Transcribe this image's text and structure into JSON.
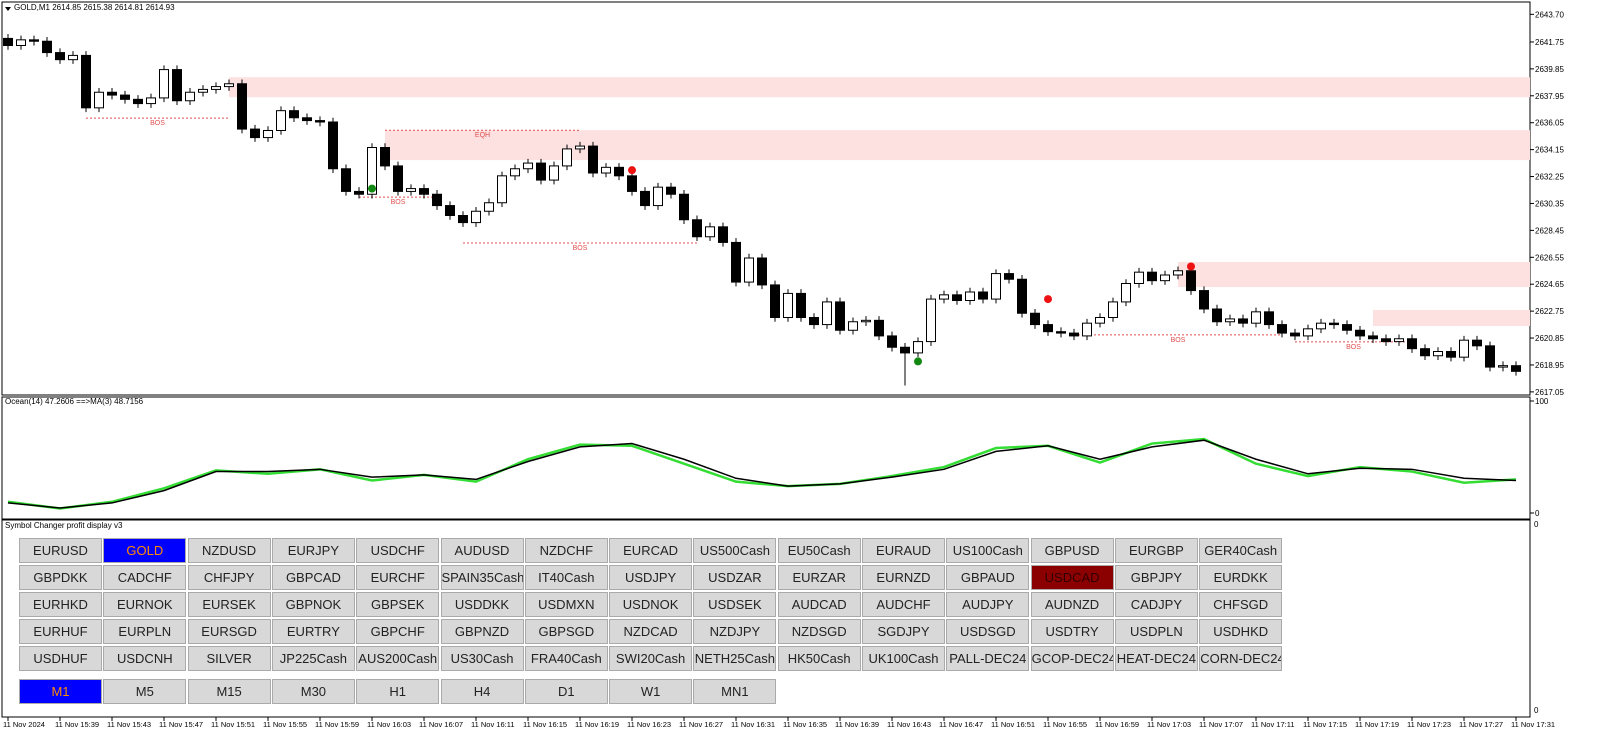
{
  "chart_data": [
    {
      "type": "candlestick",
      "title": "GOLD,M1  2614.85 2615.38 2614.81 2614.93",
      "categories": [
        "11 Nov 2024",
        null,
        null,
        null,
        "11 Nov 15:39",
        null,
        null,
        null,
        "11 Nov 15:43",
        null,
        null,
        null,
        "11 Nov 15:47",
        null,
        null,
        null,
        "11 Nov 15:51",
        null,
        null,
        null,
        "11 Nov 15:55",
        null,
        null,
        null,
        "11 Nov 15:59",
        null,
        null,
        null,
        "11 Nov 16:03",
        null,
        null,
        null,
        "11 Nov 16:07",
        null,
        null,
        null,
        "11 Nov 16:11",
        null,
        null,
        null,
        "11 Nov 16:15",
        null,
        null,
        null,
        "11 Nov 16:19",
        null,
        null,
        null,
        "11 Nov 16:23",
        null,
        null,
        null,
        "11 Nov 16:27",
        null,
        null,
        null,
        "11 Nov 16:31",
        null,
        null,
        null,
        "11 Nov 16:35",
        null,
        null,
        null,
        "11 Nov 16:39",
        null,
        null,
        null,
        "11 Nov 16:43",
        null,
        null,
        null,
        "11 Nov 16:47",
        null,
        null,
        null,
        "11 Nov 16:51",
        null,
        null,
        null,
        "11 Nov 16:55",
        null,
        null,
        null,
        "11 Nov 16:59",
        null,
        null,
        null,
        "11 Nov 17:03",
        null,
        null,
        null,
        "11 Nov 17:07",
        null,
        null,
        null,
        "11 Nov 17:11",
        null,
        null,
        null,
        "11 Nov 17:15",
        null,
        null,
        null,
        "11 Nov 17:19",
        null,
        null,
        null,
        "11 Nov 17:23",
        null,
        null,
        null,
        "11 Nov 17:27",
        null,
        null,
        null,
        "11 Nov 17:31"
      ],
      "open": [
        2642.0,
        2641.5,
        2641.9,
        2641.8,
        2641.0,
        2640.5,
        2640.8,
        2637.1,
        2638.2,
        2638.0,
        2637.7,
        2637.4,
        2637.8,
        2639.8,
        2637.6,
        2638.2,
        2638.4,
        2638.6,
        2638.8,
        2635.6,
        2635.0,
        2635.5,
        2636.9,
        2636.4,
        2636.2,
        2636.1,
        2632.8,
        2631.2,
        2631.0,
        2634.3,
        2633.0,
        2631.2,
        2631.4,
        2631.0,
        2630.2,
        2629.5,
        2629.0,
        2629.8,
        2630.4,
        2632.3,
        2632.8,
        2633.2,
        2632.0,
        2633.0,
        2634.2,
        2634.4,
        2632.5,
        2632.9,
        2632.3,
        2631.2,
        2630.2,
        2631.5,
        2631.0,
        2629.2,
        2628.0,
        2628.7,
        2627.6,
        2624.8,
        2626.5,
        2624.6,
        2622.3,
        2624.0,
        2622.3,
        2621.8,
        2623.4,
        2621.4,
        2622.0,
        2622.1,
        2621.0,
        2620.2,
        2619.8,
        2620.6,
        2623.6,
        2623.9,
        2623.5,
        2624.1,
        2623.6,
        2625.4,
        2625.0,
        2622.6,
        2621.8,
        2621.3,
        2621.2,
        2621.0,
        2621.9,
        2622.3,
        2623.4,
        2624.7,
        2625.5,
        2624.9,
        2625.3,
        2625.6,
        2624.2,
        2622.9,
        2622.0,
        2622.2,
        2621.9,
        2622.7,
        2621.8,
        2621.2,
        2621.0,
        2621.5,
        2621.9,
        2621.8,
        2621.4,
        2621.0,
        2620.8,
        2620.6,
        2620.8,
        2620.1,
        2619.6,
        2619.9,
        2619.5,
        2620.7,
        2620.3,
        2618.8,
        2618.9
      ],
      "high": [
        2642.3,
        2642.2,
        2642.2,
        2642.1,
        2641.3,
        2641.1,
        2641.1,
        2638.5,
        2638.5,
        2638.3,
        2638.0,
        2638.1,
        2640.1,
        2640.1,
        2638.5,
        2638.7,
        2638.9,
        2639.1,
        2639.1,
        2635.9,
        2635.8,
        2637.2,
        2637.2,
        2636.7,
        2636.5,
        2636.4,
        2633.1,
        2631.5,
        2634.6,
        2634.6,
        2633.3,
        2631.7,
        2631.7,
        2631.3,
        2630.5,
        2629.8,
        2630.1,
        2630.7,
        2632.6,
        2633.1,
        2633.5,
        2633.5,
        2633.3,
        2634.5,
        2634.7,
        2634.7,
        2633.2,
        2633.2,
        2632.6,
        2631.5,
        2631.8,
        2631.8,
        2631.3,
        2629.5,
        2629.0,
        2629.0,
        2627.9,
        2626.8,
        2626.8,
        2624.9,
        2624.3,
        2624.3,
        2622.6,
        2623.7,
        2623.7,
        2622.3,
        2622.4,
        2622.4,
        2621.3,
        2620.5,
        2620.9,
        2623.9,
        2624.2,
        2624.2,
        2624.4,
        2624.4,
        2625.7,
        2625.7,
        2625.3,
        2622.9,
        2622.1,
        2621.6,
        2621.5,
        2622.2,
        2622.6,
        2623.7,
        2625.0,
        2625.8,
        2625.8,
        2625.6,
        2625.9,
        2625.9,
        2624.5,
        2623.2,
        2622.5,
        2622.5,
        2623.0,
        2623.0,
        2622.1,
        2621.5,
        2621.8,
        2622.2,
        2622.2,
        2622.1,
        2621.7,
        2621.3,
        2621.1,
        2621.1,
        2621.1,
        2620.4,
        2620.2,
        2620.2,
        2621.0,
        2621.0,
        2620.6,
        2619.2,
        2619.2
      ],
      "low": [
        2641.2,
        2641.2,
        2641.5,
        2640.7,
        2640.2,
        2640.2,
        2636.8,
        2636.8,
        2637.7,
        2637.4,
        2637.1,
        2637.1,
        2637.5,
        2637.3,
        2637.3,
        2637.9,
        2638.1,
        2638.3,
        2635.3,
        2634.7,
        2634.7,
        2635.2,
        2636.1,
        2635.9,
        2635.8,
        2632.5,
        2630.9,
        2630.7,
        2630.7,
        2632.7,
        2630.9,
        2630.9,
        2630.7,
        2629.9,
        2629.2,
        2628.7,
        2628.7,
        2629.5,
        2630.1,
        2632.0,
        2632.5,
        2631.7,
        2631.7,
        2632.7,
        2633.9,
        2632.2,
        2632.2,
        2632.0,
        2630.9,
        2629.9,
        2629.9,
        2630.7,
        2628.9,
        2627.7,
        2627.7,
        2627.3,
        2624.5,
        2624.5,
        2624.3,
        2622.0,
        2622.0,
        2622.0,
        2621.5,
        2621.5,
        2621.1,
        2621.1,
        2621.7,
        2620.7,
        2619.9,
        2617.5,
        2619.5,
        2620.3,
        2623.3,
        2623.2,
        2623.2,
        2623.3,
        2623.3,
        2624.7,
        2622.3,
        2621.5,
        2621.0,
        2620.9,
        2620.7,
        2620.7,
        2621.6,
        2622.0,
        2623.1,
        2624.4,
        2624.6,
        2624.6,
        2625.0,
        2623.9,
        2622.6,
        2621.7,
        2621.7,
        2621.6,
        2621.6,
        2621.5,
        2620.9,
        2620.7,
        2620.7,
        2621.2,
        2621.5,
        2621.1,
        2620.7,
        2620.5,
        2620.3,
        2620.3,
        2619.8,
        2619.3,
        2619.3,
        2619.2,
        2619.2,
        2620.0,
        2618.5,
        2618.5,
        2618.2
      ],
      "close": [
        2641.5,
        2641.9,
        2641.8,
        2641.0,
        2640.5,
        2640.8,
        2637.1,
        2638.2,
        2638.0,
        2637.7,
        2637.4,
        2637.8,
        2639.8,
        2637.6,
        2638.2,
        2638.4,
        2638.6,
        2638.8,
        2635.6,
        2635.0,
        2635.5,
        2636.9,
        2636.4,
        2636.2,
        2636.1,
        2632.8,
        2631.2,
        2631.0,
        2634.3,
        2633.0,
        2631.2,
        2631.4,
        2631.0,
        2630.2,
        2629.5,
        2629.0,
        2629.8,
        2630.4,
        2632.3,
        2632.8,
        2633.2,
        2632.0,
        2633.0,
        2634.2,
        2634.4,
        2632.5,
        2632.9,
        2632.3,
        2631.2,
        2630.2,
        2631.5,
        2631.0,
        2629.2,
        2628.0,
        2628.7,
        2627.6,
        2624.8,
        2626.5,
        2624.6,
        2622.3,
        2624.0,
        2622.3,
        2621.8,
        2623.4,
        2621.4,
        2622.0,
        2622.1,
        2621.0,
        2620.2,
        2619.8,
        2620.6,
        2623.6,
        2623.9,
        2623.5,
        2624.1,
        2623.6,
        2625.4,
        2625.0,
        2622.6,
        2621.8,
        2621.3,
        2621.2,
        2621.0,
        2621.9,
        2622.3,
        2623.4,
        2624.7,
        2625.5,
        2624.9,
        2625.3,
        2625.6,
        2624.2,
        2622.9,
        2622.0,
        2622.2,
        2621.9,
        2622.7,
        2621.8,
        2621.2,
        2621.0,
        2621.5,
        2621.9,
        2621.8,
        2621.4,
        2621.0,
        2620.8,
        2620.6,
        2620.8,
        2620.1,
        2619.6,
        2619.9,
        2619.5,
        2620.7,
        2620.3,
        2618.8,
        2618.9,
        2618.5
      ],
      "up_color": "#ffffff",
      "down_color": "#000000",
      "ylim": [
        2616.9,
        2644.5
      ],
      "yticks": [
        {
          "value": 2617.05,
          "label": "2617.05"
        },
        {
          "value": 2618.95,
          "label": "2618.95"
        },
        {
          "value": 2620.85,
          "label": "2620.85"
        },
        {
          "value": 2622.75,
          "label": "2622.75"
        },
        {
          "value": 2624.65,
          "label": "2624.65"
        },
        {
          "value": 2626.55,
          "label": "2626.55"
        },
        {
          "value": 2628.45,
          "label": "2628.45"
        },
        {
          "value": 2630.35,
          "label": "2630.35"
        },
        {
          "value": 2632.25,
          "label": "2632.25"
        },
        {
          "value": 2634.15,
          "label": "2634.15"
        },
        {
          "value": 2636.05,
          "label": "2636.05"
        },
        {
          "value": 2637.95,
          "label": "2637.95"
        },
        {
          "value": 2639.85,
          "label": "2639.85"
        },
        {
          "value": 2641.75,
          "label": "2641.75"
        },
        {
          "value": 2643.7,
          "label": "2643.70"
        }
      ],
      "zones": [
        {
          "start": 17,
          "top": 2639.26,
          "bottom": 2637.85
        },
        {
          "start": 29,
          "top": 2635.52,
          "bottom": 2633.41
        },
        {
          "start": 90,
          "top": 2626.22,
          "bottom": 2624.45
        },
        {
          "start": 105,
          "top": 2622.83,
          "bottom": 2621.7
        }
      ],
      "zone_color": "#fde0e0",
      "levels": [
        {
          "label": "BOS",
          "value": 2636.37,
          "start": 6,
          "end": 17
        },
        {
          "label": "EQH",
          "value": 2635.52,
          "start": 29,
          "end": 44
        },
        {
          "label": "BOS",
          "value": 2630.8,
          "start": 27,
          "end": 33
        },
        {
          "label": "BOS",
          "value": 2627.56,
          "start": 35,
          "end": 53
        },
        {
          "label": "BOS",
          "value": 2621.07,
          "start": 82,
          "end": 98
        },
        {
          "label": "BOS",
          "value": 2620.58,
          "start": 99,
          "end": 108
        }
      ],
      "level_color": "#e05050",
      "markers": [
        {
          "index": 48,
          "value": 2632.7,
          "color": "#ee1111"
        },
        {
          "index": 80,
          "value": 2623.6,
          "color": "#ee1111"
        },
        {
          "index": 91,
          "value": 2625.9,
          "color": "#ee1111"
        },
        {
          "index": 28,
          "value": 2631.4,
          "color": "#118811"
        },
        {
          "index": 70,
          "value": 2619.2,
          "color": "#118811"
        }
      ]
    },
    {
      "type": "line",
      "title": "Ocean(14) 47.2606  ==>MA(3) 48.7156",
      "series": [
        {
          "color": "#33dd33",
          "values": [
            10,
            4,
            10,
            22,
            38,
            35,
            39,
            29,
            34,
            28,
            48,
            61,
            60,
            44,
            28,
            24,
            26,
            33,
            41,
            58,
            60,
            45,
            62,
            66,
            44,
            33,
            41,
            37,
            27,
            30
          ]
        },
        {
          "color": "#000000",
          "values": [
            9,
            4.5,
            9,
            20,
            37,
            37,
            39,
            32,
            34,
            30,
            46,
            59,
            62,
            48,
            31,
            24,
            26,
            32,
            39,
            55,
            60,
            48,
            59,
            65,
            48,
            35,
            40,
            39,
            31,
            29
          ]
        }
      ],
      "ylim": [
        0,
        100
      ],
      "yticks": [
        0,
        100
      ]
    }
  ],
  "symbol_panel": {
    "title": "Symbol Changer profit display v3",
    "symbols": [
      [
        "EURUSD",
        "GOLD",
        "NZDUSD",
        "EURJPY",
        "USDCHF",
        "AUDUSD",
        "NZDCHF",
        "EURCAD",
        "US500Cash",
        "EU50Cash",
        "EURAUD",
        "US100Cash",
        "GBPUSD",
        "EURGBP",
        "GER40Cash"
      ],
      [
        "GBPDKK",
        "CADCHF",
        "CHFJPY",
        "GBPCAD",
        "EURCHF",
        "SPAIN35Cash",
        "IT40Cash",
        "USDJPY",
        "USDZAR",
        "EURZAR",
        "EURNZD",
        "GBPAUD",
        "USDCAD",
        "GBPJPY",
        "EURDKK"
      ],
      [
        "EURHKD",
        "EURNOK",
        "EURSEK",
        "GBPNOK",
        "GBPSEK",
        "USDDKK",
        "USDMXN",
        "USDNOK",
        "USDSEK",
        "AUDCAD",
        "AUDCHF",
        "AUDJPY",
        "AUDNZD",
        "CADJPY",
        "CHFSGD"
      ],
      [
        "EURHUF",
        "EURPLN",
        "EURSGD",
        "EURTRY",
        "GBPCHF",
        "GBPNZD",
        "GBPSGD",
        "NZDCAD",
        "NZDJPY",
        "NZDSGD",
        "SGDJPY",
        "USDSGD",
        "USDTRY",
        "USDPLN",
        "USDHKD"
      ],
      [
        "USDHUF",
        "USDCNH",
        "SILVER",
        "JP225Cash",
        "AUS200Cash",
        "US30Cash",
        "FRA40Cash",
        "SWI20Cash",
        "NETH25Cash",
        "HK50Cash",
        "UK100Cash",
        "PALL-DEC24",
        "GCOP-DEC24",
        "HEAT-DEC24",
        "CORN-DEC24"
      ]
    ],
    "timeframes": [
      "M1",
      "M5",
      "M15",
      "M30",
      "H1",
      "H4",
      "D1",
      "W1",
      "MN1"
    ],
    "active_symbol": "GOLD",
    "alert_symbol": "USDCAD",
    "active_timeframe": "M1",
    "axis_labels": [
      "0",
      "0"
    ]
  }
}
